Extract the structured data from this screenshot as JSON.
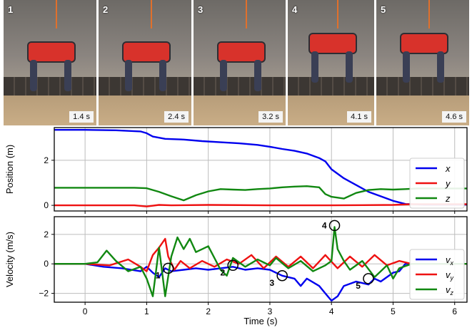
{
  "photos": [
    {
      "num": "1",
      "time": "1.4 s"
    },
    {
      "num": "2",
      "time": "2.4 s"
    },
    {
      "num": "3",
      "time": "3.2 s"
    },
    {
      "num": "4",
      "time": "4.1 s"
    },
    {
      "num": "5",
      "time": "4.6 s"
    }
  ],
  "chart_data": [
    {
      "type": "line",
      "ylabel": "Position (m)",
      "xlim": [
        -0.5,
        6.2
      ],
      "ylim": [
        -0.25,
        3.45
      ],
      "yticks": [
        0,
        2
      ],
      "grid": true,
      "legend": "right",
      "series": [
        {
          "name": "x",
          "color": "#0000ee",
          "x": [
            -0.5,
            0.0,
            0.5,
            0.9,
            1.0,
            1.1,
            1.3,
            1.6,
            1.9,
            2.2,
            2.5,
            2.8,
            3.0,
            3.2,
            3.4,
            3.6,
            3.8,
            3.9,
            4.0,
            4.2,
            4.4,
            4.6,
            4.8,
            5.0,
            5.2,
            5.5,
            6.2
          ],
          "y": [
            3.35,
            3.35,
            3.33,
            3.28,
            3.2,
            3.05,
            2.95,
            2.92,
            2.85,
            2.8,
            2.75,
            2.68,
            2.6,
            2.5,
            2.42,
            2.3,
            2.1,
            1.95,
            1.6,
            1.2,
            0.9,
            0.6,
            0.4,
            0.2,
            0.06,
            0.03,
            0.03
          ]
        },
        {
          "name": "y",
          "color": "#ee1111",
          "x": [
            -0.5,
            0.8,
            1.0,
            1.2,
            1.4,
            2.0,
            3.0,
            4.0,
            5.0,
            5.3,
            6.2
          ],
          "y": [
            0.0,
            0.0,
            -0.05,
            0.02,
            0.0,
            0.02,
            0.0,
            0.0,
            0.02,
            0.05,
            0.05
          ]
        },
        {
          "name": "z",
          "color": "#118811",
          "x": [
            -0.5,
            0.0,
            0.4,
            0.8,
            1.0,
            1.2,
            1.4,
            1.6,
            1.8,
            2.0,
            2.2,
            2.4,
            2.6,
            2.8,
            3.0,
            3.2,
            3.4,
            3.6,
            3.8,
            3.9,
            4.0,
            4.2,
            4.4,
            4.6,
            4.8,
            5.0,
            5.2,
            5.4,
            6.2
          ],
          "y": [
            0.78,
            0.78,
            0.78,
            0.78,
            0.76,
            0.6,
            0.4,
            0.22,
            0.45,
            0.62,
            0.72,
            0.7,
            0.68,
            0.72,
            0.75,
            0.8,
            0.83,
            0.85,
            0.8,
            0.5,
            0.38,
            0.3,
            0.55,
            0.68,
            0.72,
            0.7,
            0.72,
            0.75,
            0.75
          ]
        }
      ]
    },
    {
      "type": "line",
      "ylabel": "Velocity (m/s)",
      "xlabel": "Time (s)",
      "xlim": [
        -0.5,
        6.2
      ],
      "ylim": [
        -2.6,
        3.2
      ],
      "xticks": [
        0,
        1,
        2,
        3,
        4,
        5,
        6
      ],
      "yticks": [
        -2,
        0,
        2
      ],
      "grid": true,
      "legend": "right",
      "series": [
        {
          "name": "v_x",
          "color": "#0000ee",
          "x": [
            -0.5,
            0.0,
            0.3,
            0.6,
            0.9,
            1.0,
            1.1,
            1.2,
            1.3,
            1.4,
            1.6,
            1.8,
            2.0,
            2.2,
            2.4,
            2.6,
            2.8,
            3.0,
            3.2,
            3.4,
            3.5,
            3.6,
            3.8,
            3.9,
            4.0,
            4.1,
            4.2,
            4.4,
            4.6,
            4.7,
            4.8,
            5.0,
            5.1,
            5.2,
            6.2
          ],
          "y": [
            0.0,
            0.0,
            -0.2,
            -0.3,
            -0.5,
            -0.2,
            -0.6,
            -0.9,
            -0.3,
            -0.5,
            -0.4,
            -0.3,
            -0.4,
            -0.3,
            -0.2,
            -0.4,
            -0.3,
            -0.4,
            -0.8,
            -1.0,
            -1.5,
            -1.0,
            -1.5,
            -2.0,
            -2.5,
            -2.2,
            -1.5,
            -1.2,
            -1.4,
            -1.0,
            -1.2,
            -0.6,
            -0.5,
            0.0,
            0.0
          ]
        },
        {
          "name": "v_y",
          "color": "#ee1111",
          "x": [
            -0.5,
            0.0,
            0.4,
            0.7,
            0.9,
            1.0,
            1.1,
            1.2,
            1.3,
            1.35,
            1.45,
            1.55,
            1.7,
            1.9,
            2.1,
            2.3,
            2.5,
            2.7,
            2.9,
            3.1,
            3.3,
            3.5,
            3.7,
            3.9,
            4.1,
            4.3,
            4.5,
            4.7,
            4.9,
            5.1,
            5.3,
            6.2
          ],
          "y": [
            0.0,
            0.0,
            -0.1,
            0.3,
            -0.2,
            -0.5,
            0.6,
            1.1,
            1.7,
            0.5,
            -0.4,
            0.2,
            -0.3,
            0.2,
            -0.2,
            0.3,
            0.0,
            0.6,
            -0.3,
            0.5,
            -0.2,
            0.5,
            -0.3,
            0.6,
            -0.3,
            0.5,
            -0.2,
            0.6,
            -0.1,
            0.2,
            0.0,
            0.0
          ]
        },
        {
          "name": "v_z",
          "color": "#118811",
          "x": [
            -0.5,
            0.0,
            0.2,
            0.35,
            0.5,
            0.7,
            0.9,
            1.0,
            1.1,
            1.2,
            1.3,
            1.4,
            1.5,
            1.6,
            1.7,
            1.8,
            2.0,
            2.2,
            2.3,
            2.4,
            2.6,
            2.8,
            3.0,
            3.1,
            3.3,
            3.5,
            3.7,
            3.9,
            4.0,
            4.05,
            4.1,
            4.2,
            4.3,
            4.5,
            4.7,
            4.9,
            5.0,
            5.1,
            5.3,
            6.2
          ],
          "y": [
            0.0,
            0.0,
            0.1,
            0.9,
            0.2,
            -0.5,
            -0.2,
            -1.0,
            -2.2,
            1.1,
            -2.2,
            0.5,
            1.8,
            1.0,
            1.7,
            0.8,
            1.2,
            -0.4,
            -0.8,
            0.4,
            -0.2,
            0.3,
            -0.1,
            0.4,
            -0.3,
            0.2,
            -0.5,
            -0.1,
            0.2,
            2.5,
            1.0,
            0.2,
            -0.4,
            0.2,
            -0.9,
            -0.1,
            -1.0,
            -0.3,
            0.0,
            0.0
          ]
        }
      ],
      "annotations": [
        {
          "label": "1",
          "x": 1.35,
          "y": -0.3
        },
        {
          "label": "2",
          "x": 2.4,
          "y": -0.1
        },
        {
          "label": "3",
          "x": 3.2,
          "y": -0.8
        },
        {
          "label": "4",
          "x": 4.05,
          "y": 2.6
        },
        {
          "label": "5",
          "x": 4.6,
          "y": -1.0
        }
      ]
    }
  ]
}
